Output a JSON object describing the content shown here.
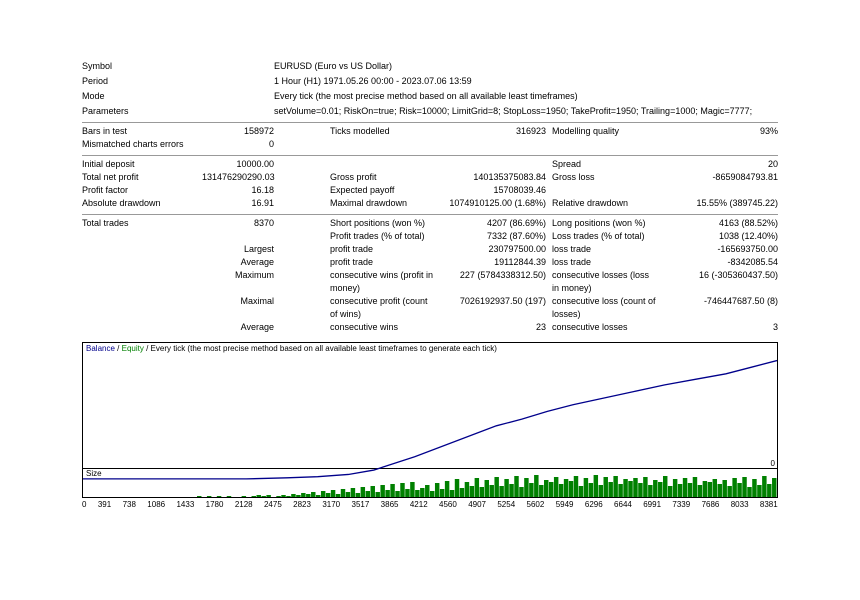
{
  "header": {
    "symbol_label": "Symbol",
    "symbol_value": "EURUSD (Euro vs US Dollar)",
    "period_label": "Period",
    "period_value": "1 Hour (H1) 1971.05.26 00:00 - 2023.07.06 13:59",
    "mode_label": "Mode",
    "mode_value": "Every tick (the most precise method based on all available least timeframes)",
    "parameters_label": "Parameters",
    "parameters_value": "setVolume=0.01; RiskOn=true; Risk=10000; LimitGrid=8; StopLoss=1950; TakeProfit=1950; Trailing=1000; Magic=7777;"
  },
  "bars": {
    "bars_label": "Bars in test",
    "bars_value": "158972",
    "ticks_label": "Ticks modelled",
    "ticks_value": "316923",
    "quality_label": "Modelling quality",
    "quality_value": "93%",
    "mismatch_label": "Mismatched charts errors",
    "mismatch_value": "0"
  },
  "deposit": {
    "initial_label": "Initial deposit",
    "initial_value": "10000.00",
    "spread_label": "Spread",
    "spread_value": "20",
    "net_label": "Total net profit",
    "net_value": "131476290290.03",
    "gross_profit_label": "Gross profit",
    "gross_profit_value": "140135375083.84",
    "gross_loss_label": "Gross loss",
    "gross_loss_value": "-8659084793.81",
    "pf_label": "Profit factor",
    "pf_value": "16.18",
    "ep_label": "Expected payoff",
    "ep_value": "15708039.46",
    "ad_label": "Absolute drawdown",
    "ad_value": "16.91",
    "md_label": "Maximal drawdown",
    "md_value": "1074910125.00 (1.68%)",
    "rd_label": "Relative drawdown",
    "rd_value": "15.55% (389745.22)"
  },
  "trades": {
    "total_label": "Total trades",
    "total_value": "8370",
    "short_label": "Short positions (won %)",
    "short_value": "4207 (86.69%)",
    "long_label": "Long positions (won %)",
    "long_value": "4163 (88.52%)",
    "pt_label": "Profit trades (% of total)",
    "pt_value": "7332 (87.60%)",
    "lt_label": "Loss trades (% of total)",
    "lt_value": "1038 (12.40%)",
    "largest": "Largest",
    "largest_pt_label": "profit trade",
    "largest_pt_value": "230797500.00",
    "largest_lt_label": "loss trade",
    "largest_lt_value": "-165693750.00",
    "average": "Average",
    "avg_pt_label": "profit trade",
    "avg_pt_value": "19112844.39",
    "avg_lt_label": "loss trade",
    "avg_lt_value": "-8342085.54",
    "maximum": "Maximum",
    "max_cw_label": "consecutive wins (profit in money)",
    "max_cw_value": "227 (5784338312.50)",
    "max_cl_label": "consecutive losses (loss in money)",
    "max_cl_value": "16 (-305360437.50)",
    "maximal": "Maximal",
    "mx_cp_label": "consecutive profit (count of wins)",
    "mx_cp_value": "7026192937.50 (197)",
    "mx_cl_label": "consecutive loss (count of losses)",
    "mx_cl_value": "-746447687.50 (8)",
    "avg2": "Average",
    "avg_cw_label": "consecutive wins",
    "avg_cw_value": "23",
    "avg_cl_label": "consecutive losses",
    "avg_cl_value": "3"
  },
  "chart": {
    "balance_label": "Balance",
    "equity_label": "Equity",
    "tick_desc": "Every tick (the most precise method based on all available least timeframes to generate each tick)",
    "zero_label": "0",
    "size_label": "Size",
    "balance_color": "#00008b",
    "equity_color": "#008000",
    "size_bar_color": "#008000",
    "background": "#ffffff",
    "balance_points": [
      [
        0,
        112
      ],
      [
        40,
        112
      ],
      [
        80,
        112
      ],
      [
        120,
        112
      ],
      [
        160,
        112
      ],
      [
        200,
        111
      ],
      [
        230,
        110
      ],
      [
        260,
        108
      ],
      [
        285,
        104
      ],
      [
        305,
        98
      ],
      [
        325,
        92
      ],
      [
        345,
        85
      ],
      [
        365,
        78
      ],
      [
        385,
        71
      ],
      [
        405,
        64
      ],
      [
        430,
        58
      ],
      [
        455,
        51
      ],
      [
        480,
        45
      ],
      [
        510,
        39
      ],
      [
        540,
        33
      ],
      [
        570,
        27
      ],
      [
        600,
        22
      ],
      [
        630,
        17
      ],
      [
        655,
        11
      ],
      [
        680,
        5
      ]
    ],
    "size_values": [
      0,
      0,
      0,
      0,
      0,
      0,
      0,
      0,
      0,
      0,
      0,
      0,
      0,
      0,
      0,
      0,
      0,
      0,
      0,
      0,
      0,
      0,
      0,
      1,
      0,
      1,
      0,
      1,
      0,
      1,
      0,
      0,
      1,
      0,
      1,
      2,
      1,
      2,
      0,
      1,
      2,
      1,
      3,
      2,
      4,
      3,
      5,
      2,
      6,
      4,
      7,
      3,
      8,
      5,
      9,
      4,
      10,
      6,
      11,
      5,
      12,
      7,
      13,
      6,
      14,
      8,
      15,
      7,
      9,
      12,
      6,
      14,
      8,
      16,
      7,
      18,
      9,
      15,
      11,
      19,
      10,
      17,
      12,
      20,
      11,
      18,
      13,
      21,
      10,
      19,
      14,
      22,
      12,
      17,
      15,
      20,
      13,
      18,
      16,
      21,
      11,
      19,
      14,
      22,
      12,
      20,
      15,
      21,
      13,
      18,
      16,
      19,
      14,
      20,
      12,
      17,
      15,
      21,
      11,
      18,
      13,
      19,
      14,
      20,
      12,
      16,
      15,
      18,
      13,
      17,
      11,
      19,
      14,
      20,
      10,
      18,
      12,
      21,
      13,
      19
    ],
    "xaxis_ticks": [
      "0",
      "391",
      "738",
      "1086",
      "1433",
      "1780",
      "2128",
      "2475",
      "2823",
      "3170",
      "3517",
      "3865",
      "4212",
      "4560",
      "4907",
      "5254",
      "5602",
      "5949",
      "6296",
      "6644",
      "6991",
      "7339",
      "7686",
      "8033",
      "8381"
    ]
  }
}
